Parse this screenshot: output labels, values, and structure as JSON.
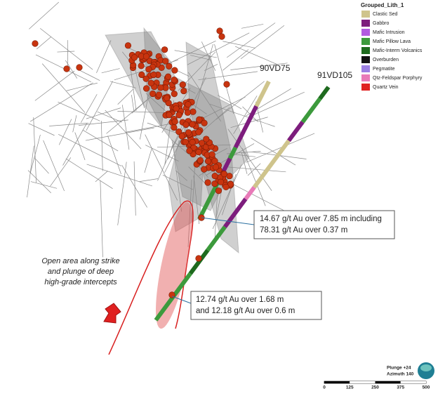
{
  "legend": {
    "title": "Grouped_Lith_1",
    "items": [
      {
        "name": "Clastic Sed",
        "color": "#cfc48c"
      },
      {
        "name": "Gabbro",
        "color": "#7d1d7d"
      },
      {
        "name": "Mafic Intrusion",
        "color": "#b25be0"
      },
      {
        "name": "Mafic Pillow Lava",
        "color": "#3c9a3c"
      },
      {
        "name": "Mafic-Interm Volcanics",
        "color": "#1e6a1e"
      },
      {
        "name": "Overburden",
        "color": "#111111"
      },
      {
        "name": "Pegmatite",
        "color": "#9c7fe2"
      },
      {
        "name": "Qtz-Feldspar Porphyry",
        "color": "#e87ab8"
      },
      {
        "name": "Quartz Vein",
        "color": "#e02222"
      }
    ]
  },
  "holes": [
    "90VD75",
    "91VD105"
  ],
  "callouts": [
    {
      "lines": [
        "14.67 g/t Au over 7.85 m including",
        "78.31 g/t Au over 0.37 m"
      ]
    },
    {
      "lines": [
        "12.74 g/t Au over 1.68 m",
        "and 12.18 g/t Au over 0.6 m"
      ]
    }
  ],
  "annotation": [
    "Open area along strike",
    "and plunge of deep",
    "high-grade intercepts"
  ],
  "view": {
    "plunge": "Plunge +24",
    "azimuth": "Azimuth 140"
  },
  "scale": [
    0,
    125,
    250,
    375,
    500
  ]
}
